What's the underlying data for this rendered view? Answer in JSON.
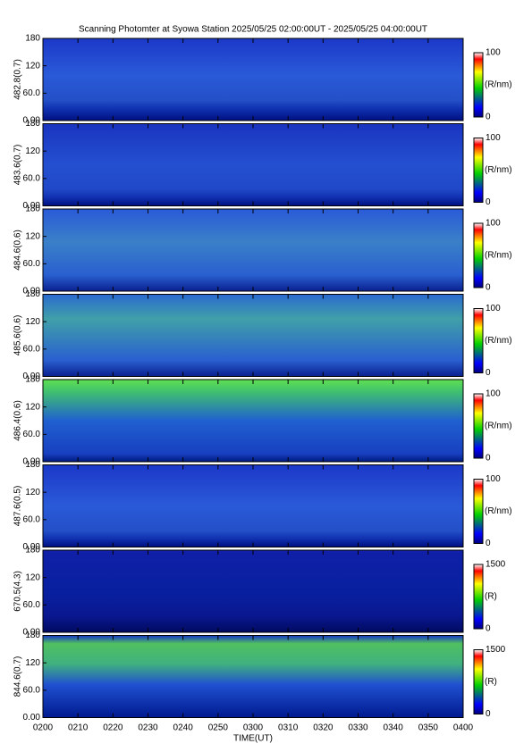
{
  "chart_data": {
    "type": "heatmap",
    "title": "Scanning Photomter at Syowa Station 2025/05/25 02:00:00UT - 2025/05/25 04:00:00UT",
    "xlabel": "TIME(UT)",
    "xlim": [
      0,
      120
    ],
    "xticks": [
      {
        "value": 0,
        "label": "0200"
      },
      {
        "value": 10,
        "label": "0210"
      },
      {
        "value": 20,
        "label": "0220"
      },
      {
        "value": 30,
        "label": "0230"
      },
      {
        "value": 40,
        "label": "0240"
      },
      {
        "value": 50,
        "label": "0250"
      },
      {
        "value": 60,
        "label": "0300"
      },
      {
        "value": 70,
        "label": "0310"
      },
      {
        "value": 80,
        "label": "0320"
      },
      {
        "value": 90,
        "label": "0330"
      },
      {
        "value": 100,
        "label": "0340"
      },
      {
        "value": 110,
        "label": "0350"
      },
      {
        "value": 120,
        "label": "0400"
      }
    ],
    "panels": [
      {
        "ylabel": "482.8(0.7)",
        "ylim": [
          0,
          180
        ],
        "yticks": [
          {
            "value": 0,
            "label": "0.00"
          },
          {
            "value": 60,
            "label": "60.0"
          },
          120,
          180
        ],
        "colorbar": {
          "label": "(R/nm)",
          "lim": [
            0,
            100
          ],
          "ticks": [
            0,
            100
          ]
        }
      },
      {
        "ylabel": "483.6(0.7)",
        "ylim": [
          0,
          180
        ],
        "yticks": [
          {
            "value": 0,
            "label": "0.00"
          },
          {
            "value": 60,
            "label": "60.0"
          },
          120,
          180
        ],
        "colorbar": {
          "label": "(R/nm)",
          "lim": [
            0,
            100
          ],
          "ticks": [
            0,
            100
          ]
        }
      },
      {
        "ylabel": "484.6(0.6)",
        "ylim": [
          0,
          180
        ],
        "yticks": [
          {
            "value": 0,
            "label": "0.00"
          },
          {
            "value": 60,
            "label": "60.0"
          },
          120,
          180
        ],
        "colorbar": {
          "label": "(R/nm)",
          "lim": [
            0,
            100
          ],
          "ticks": [
            0,
            100
          ]
        }
      },
      {
        "ylabel": "485.6(0.6)",
        "ylim": [
          0,
          180
        ],
        "yticks": [
          {
            "value": 0,
            "label": "0.00"
          },
          {
            "value": 60,
            "label": "60.0"
          },
          120,
          180
        ],
        "colorbar": {
          "label": "(R/nm)",
          "lim": [
            0,
            100
          ],
          "ticks": [
            0,
            100
          ]
        }
      },
      {
        "ylabel": "486.4(0.6)",
        "ylim": [
          0,
          180
        ],
        "yticks": [
          {
            "value": 0,
            "label": "0.00"
          },
          {
            "value": 60,
            "label": "60.0"
          },
          120,
          180
        ],
        "colorbar": {
          "label": "(R/nm)",
          "lim": [
            0,
            100
          ],
          "ticks": [
            0,
            100
          ]
        }
      },
      {
        "ylabel": "487.6(0.5)",
        "ylim": [
          0,
          180
        ],
        "yticks": [
          {
            "value": 0,
            "label": "0.00"
          },
          {
            "value": 60,
            "label": "60.0"
          },
          120,
          180
        ],
        "colorbar": {
          "label": "(R/nm)",
          "lim": [
            0,
            100
          ],
          "ticks": [
            0,
            100
          ]
        }
      },
      {
        "ylabel": "670.5(4.3)",
        "ylim": [
          0,
          180
        ],
        "yticks": [
          {
            "value": 0,
            "label": "0.00"
          },
          {
            "value": 60,
            "label": "60.0"
          },
          120,
          180
        ],
        "colorbar": {
          "label": "(R)",
          "lim": [
            0,
            1500
          ],
          "ticks": [
            0,
            1500
          ]
        }
      },
      {
        "ylabel": "844.6(0.7)",
        "ylim": [
          0,
          180
        ],
        "yticks": [
          {
            "value": 0,
            "label": "0.00"
          },
          {
            "value": 60,
            "label": "60.0"
          },
          120,
          180
        ],
        "colorbar": {
          "label": "(R)",
          "lim": [
            0,
            1500
          ],
          "ticks": [
            0,
            1500
          ]
        }
      }
    ]
  }
}
